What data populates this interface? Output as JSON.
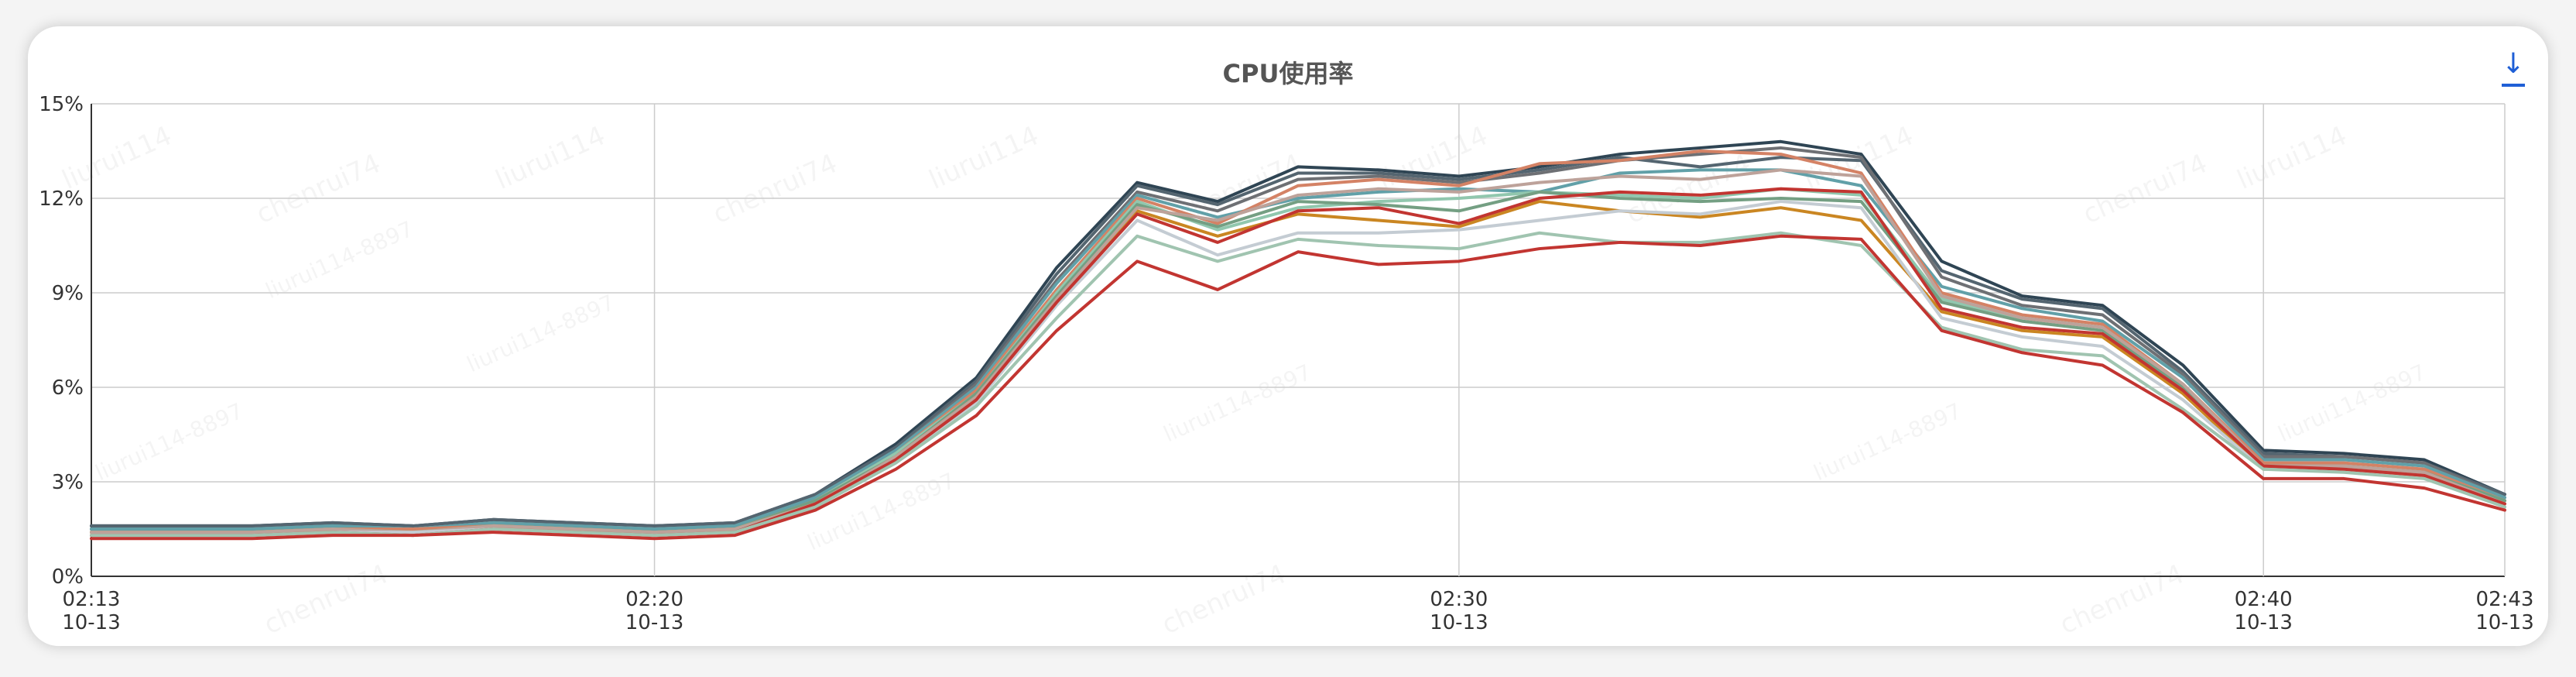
{
  "chart_data": {
    "type": "line",
    "title": "CPU使用率",
    "ylim": [
      0,
      15
    ],
    "yticks": [
      "0%",
      "3%",
      "6%",
      "9%",
      "12%",
      "15%"
    ],
    "xticks": [
      {
        "time": "02:13",
        "date": "10-13",
        "x": 0
      },
      {
        "time": "02:20",
        "date": "10-13",
        "x": 7
      },
      {
        "time": "02:30",
        "date": "10-13",
        "x": 17
      },
      {
        "time": "02:40",
        "date": "10-13",
        "x": 27
      },
      {
        "time": "02:43",
        "date": "10-13",
        "x": 30
      }
    ],
    "grid": true,
    "legend": "none",
    "x": [
      0,
      1,
      2,
      3,
      4,
      5,
      6,
      7,
      8,
      9,
      10,
      11,
      12,
      13,
      14,
      15,
      16,
      17,
      18,
      19,
      20,
      21,
      22,
      23,
      24,
      25,
      26,
      27,
      28,
      29,
      30
    ],
    "series": [
      {
        "color": "#2f4554",
        "values": [
          1.6,
          1.6,
          1.6,
          1.7,
          1.6,
          1.8,
          1.7,
          1.6,
          1.7,
          2.6,
          4.2,
          6.3,
          9.8,
          12.5,
          11.9,
          13.0,
          12.9,
          12.7,
          13.0,
          13.4,
          13.6,
          13.8,
          13.4,
          10.0,
          8.9,
          8.6,
          6.7,
          4.0,
          3.9,
          3.7,
          2.6
        ]
      },
      {
        "color": "#546570",
        "values": [
          1.6,
          1.6,
          1.6,
          1.7,
          1.6,
          1.8,
          1.7,
          1.6,
          1.7,
          2.6,
          4.1,
          6.2,
          9.6,
          12.4,
          11.8,
          12.8,
          12.8,
          12.6,
          12.9,
          13.3,
          13.0,
          13.3,
          13.2,
          9.7,
          8.8,
          8.5,
          6.5,
          3.9,
          3.8,
          3.6,
          2.6
        ]
      },
      {
        "color": "#6e7074",
        "values": [
          1.5,
          1.5,
          1.5,
          1.6,
          1.5,
          1.7,
          1.6,
          1.5,
          1.6,
          2.5,
          4.0,
          6.1,
          9.4,
          12.2,
          11.6,
          12.6,
          12.7,
          12.5,
          12.8,
          13.2,
          13.4,
          13.6,
          13.3,
          9.5,
          8.6,
          8.3,
          6.4,
          3.8,
          3.8,
          3.6,
          2.5
        ]
      },
      {
        "color": "#61a0a8",
        "values": [
          1.5,
          1.5,
          1.5,
          1.6,
          1.5,
          1.7,
          1.6,
          1.5,
          1.6,
          2.5,
          4.0,
          6.0,
          9.3,
          12.1,
          11.4,
          12.0,
          12.2,
          12.3,
          12.2,
          12.8,
          12.9,
          12.9,
          12.4,
          9.2,
          8.5,
          8.1,
          6.3,
          3.7,
          3.7,
          3.5,
          2.5
        ]
      },
      {
        "color": "#d48265",
        "values": [
          1.4,
          1.4,
          1.4,
          1.5,
          1.5,
          1.6,
          1.5,
          1.4,
          1.5,
          2.4,
          3.9,
          5.9,
          9.1,
          12.0,
          11.2,
          12.4,
          12.6,
          12.4,
          13.1,
          13.2,
          13.5,
          13.4,
          12.8,
          9.0,
          8.3,
          8.0,
          6.1,
          3.6,
          3.6,
          3.4,
          2.4
        ]
      },
      {
        "color": "#91c7ae",
        "values": [
          1.4,
          1.4,
          1.4,
          1.5,
          1.4,
          1.6,
          1.5,
          1.4,
          1.5,
          2.4,
          3.9,
          5.8,
          9.0,
          11.9,
          11.0,
          11.7,
          11.9,
          12.0,
          12.2,
          12.1,
          12.0,
          12.3,
          12.1,
          8.8,
          8.2,
          7.9,
          6.0,
          3.5,
          3.5,
          3.3,
          2.4
        ]
      },
      {
        "color": "#749f83",
        "values": [
          1.4,
          1.4,
          1.4,
          1.5,
          1.4,
          1.6,
          1.5,
          1.4,
          1.5,
          2.4,
          3.8,
          5.8,
          8.9,
          11.8,
          11.1,
          11.9,
          11.8,
          11.6,
          12.2,
          12.0,
          11.9,
          12.0,
          11.9,
          8.7,
          8.1,
          7.8,
          6.0,
          3.5,
          3.5,
          3.3,
          2.4
        ]
      },
      {
        "color": "#ca8622",
        "values": [
          1.4,
          1.4,
          1.4,
          1.5,
          1.4,
          1.6,
          1.5,
          1.4,
          1.5,
          2.3,
          3.8,
          5.7,
          8.8,
          11.6,
          10.8,
          11.5,
          11.3,
          11.1,
          11.9,
          11.6,
          11.4,
          11.7,
          11.3,
          8.4,
          7.8,
          7.6,
          5.8,
          3.4,
          3.4,
          3.2,
          2.3
        ]
      },
      {
        "color": "#bda29a",
        "values": [
          1.4,
          1.4,
          1.4,
          1.5,
          1.4,
          1.6,
          1.5,
          1.4,
          1.5,
          2.3,
          3.8,
          5.7,
          8.8,
          11.7,
          11.3,
          12.1,
          12.3,
          12.2,
          12.5,
          12.7,
          12.6,
          12.9,
          12.7,
          8.9,
          8.2,
          7.9,
          6.1,
          3.5,
          3.5,
          3.3,
          2.3
        ]
      },
      {
        "color": "#c4ccd3",
        "values": [
          1.3,
          1.3,
          1.3,
          1.4,
          1.4,
          1.5,
          1.4,
          1.3,
          1.4,
          2.2,
          3.6,
          5.5,
          8.6,
          11.3,
          10.2,
          10.9,
          10.9,
          11.0,
          11.3,
          11.6,
          11.5,
          11.9,
          11.7,
          8.2,
          7.6,
          7.3,
          5.6,
          3.4,
          3.4,
          3.2,
          2.3
        ]
      },
      {
        "color": "#c23531",
        "values": [
          1.3,
          1.3,
          1.3,
          1.4,
          1.3,
          1.5,
          1.4,
          1.3,
          1.4,
          2.3,
          3.7,
          5.6,
          8.7,
          11.5,
          10.6,
          11.6,
          11.7,
          11.2,
          12.0,
          12.2,
          12.1,
          12.3,
          12.2,
          8.5,
          7.9,
          7.7,
          5.9,
          3.5,
          3.4,
          3.2,
          2.3
        ]
      },
      {
        "color": "#a0c4b0",
        "values": [
          1.3,
          1.3,
          1.3,
          1.4,
          1.3,
          1.5,
          1.4,
          1.3,
          1.4,
          2.2,
          3.6,
          5.4,
          8.2,
          10.8,
          10.0,
          10.7,
          10.5,
          10.4,
          10.9,
          10.6,
          10.6,
          10.9,
          10.5,
          7.9,
          7.2,
          7.0,
          5.3,
          3.4,
          3.3,
          3.1,
          2.2
        ]
      },
      {
        "color": "#c23531",
        "values": [
          1.2,
          1.2,
          1.2,
          1.3,
          1.3,
          1.4,
          1.3,
          1.2,
          1.3,
          2.1,
          3.4,
          5.1,
          7.8,
          10.0,
          9.1,
          10.3,
          9.9,
          10.0,
          10.4,
          10.6,
          10.5,
          10.8,
          10.7,
          7.8,
          7.1,
          6.7,
          5.2,
          3.1,
          3.1,
          2.8,
          2.1
        ]
      }
    ]
  },
  "toolbar": {
    "download_icon": "download-icon",
    "download_glyph": "↓"
  }
}
